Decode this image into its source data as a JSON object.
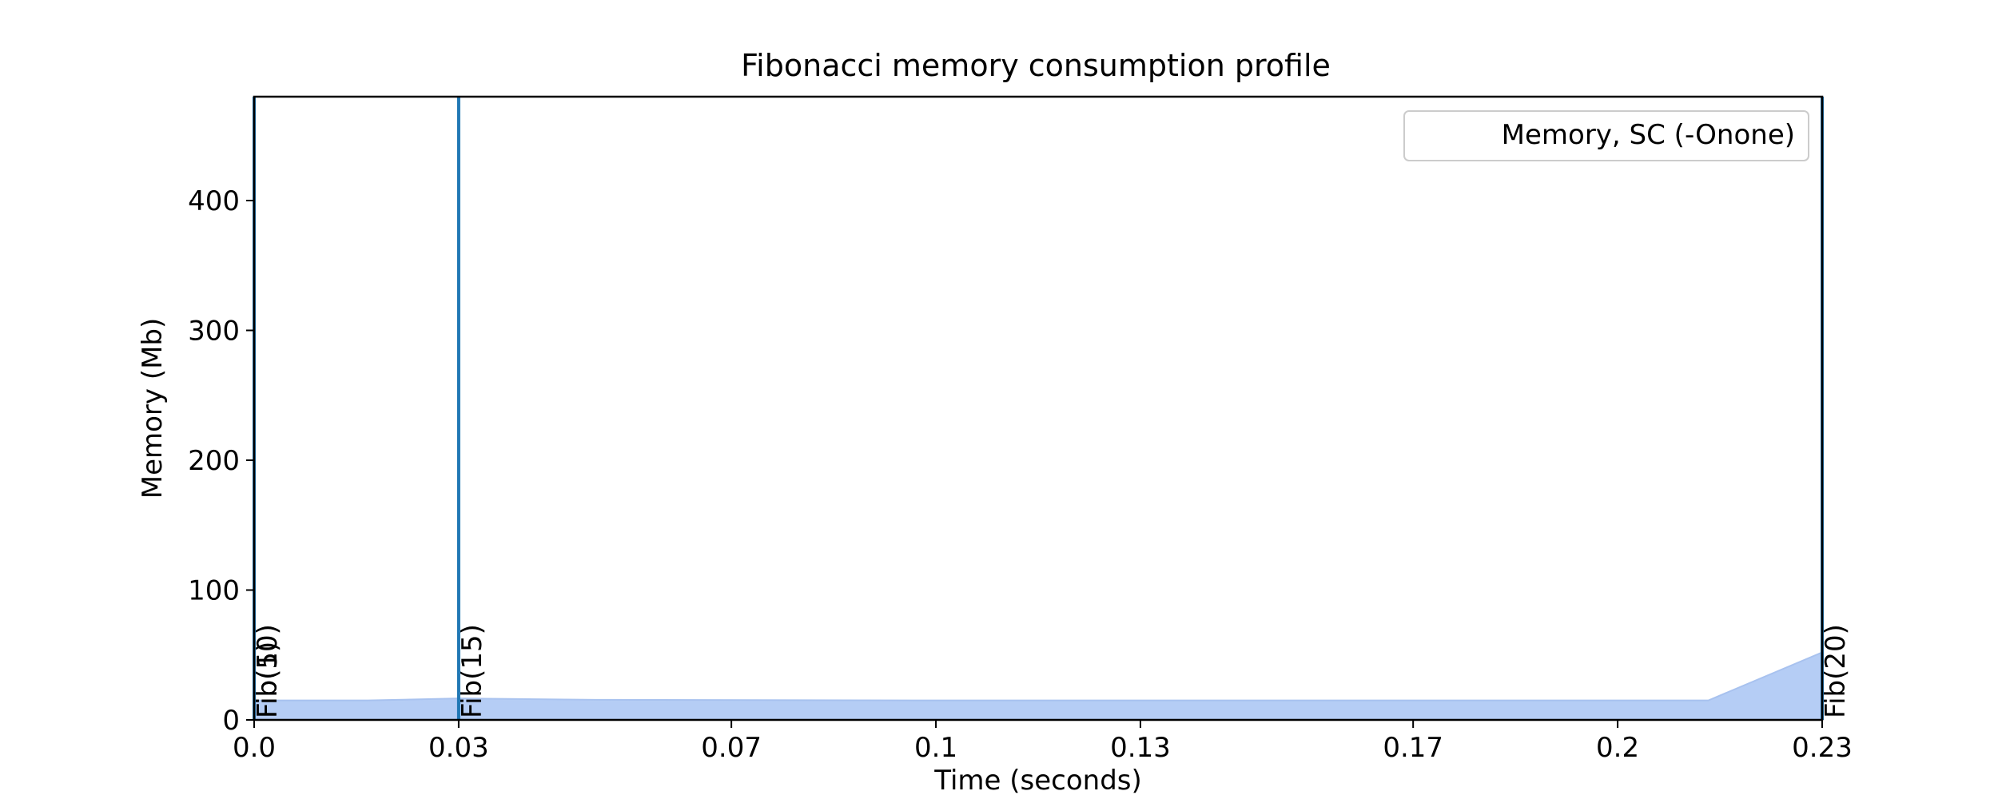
{
  "chart_data": {
    "type": "area",
    "title": "Fibonacci memory consumption profile",
    "xlabel": "Time (seconds)",
    "ylabel": "Memory (Mb)",
    "xlim": [
      0.0,
      0.23
    ],
    "ylim": [
      0,
      480
    ],
    "xticks": [
      0.0,
      0.03,
      0.07,
      0.1,
      0.13,
      0.17,
      0.2,
      0.23
    ],
    "xtick_labels": [
      "0.0",
      "0.03",
      "0.07",
      "0.1",
      "0.13",
      "0.17",
      "0.2",
      "0.23"
    ],
    "yticks": [
      0,
      100,
      200,
      300,
      400
    ],
    "ytick_labels": [
      "0",
      "100",
      "200",
      "300",
      "400"
    ],
    "grid": false,
    "legend": {
      "position": "top-right",
      "entries": [
        "Memory, SC (-Onone)"
      ]
    },
    "series": [
      {
        "name": "Memory, SC (-Onone)",
        "color": "#b5cdf5",
        "x": [
          0.0,
          0.0033,
          0.0167,
          0.03,
          0.05,
          0.1,
          0.15,
          0.2,
          0.2133,
          0.23
        ],
        "y": [
          15,
          15,
          15,
          16.5,
          15.5,
          15,
          15,
          15,
          15,
          52
        ]
      }
    ],
    "markers": [
      {
        "x": 0.0,
        "label": "Fib(5)",
        "color": "#1f77b4"
      },
      {
        "x": 0.0,
        "label": "Fib(10)",
        "color": "#1f77b4"
      },
      {
        "x": 0.03,
        "label": "Fib(15)",
        "color": "#1f77b4"
      },
      {
        "x": 0.23,
        "label": "Fib(20)",
        "color": "#1f77b4"
      }
    ]
  }
}
